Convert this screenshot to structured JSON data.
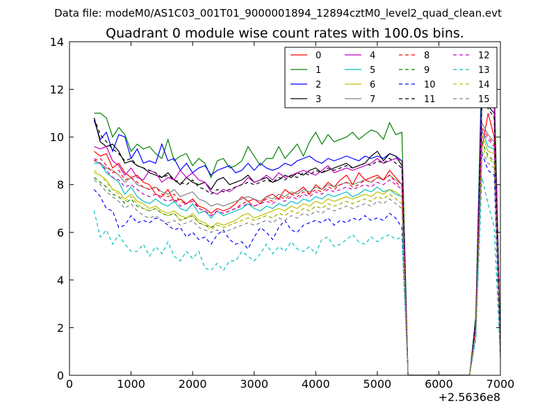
{
  "chart_data": {
    "type": "line",
    "suptitle": "Data file: modeM0/AS1C03_001T01_9000001894_12894cztM0_level2_quad_clean.evt",
    "title": "Quadrant 0 module wise count rates with 100.0s bins.",
    "xlabel": "",
    "ylabel": "",
    "x_offset_label": "+2.5636e8",
    "xlim": [
      0,
      7000
    ],
    "ylim": [
      0,
      14
    ],
    "x_ticks": [
      0,
      1000,
      2000,
      3000,
      4000,
      5000,
      6000,
      7000
    ],
    "y_ticks": [
      0,
      2,
      4,
      6,
      8,
      10,
      12,
      14
    ],
    "legend": {
      "location": "top-right",
      "columns": 4
    },
    "x": [
      400,
      500,
      600,
      700,
      800,
      900,
      1000,
      1100,
      1200,
      1300,
      1400,
      1500,
      1600,
      1700,
      1800,
      1900,
      2000,
      2100,
      2200,
      2300,
      2400,
      2500,
      2600,
      2700,
      2800,
      2900,
      3000,
      3100,
      3200,
      3300,
      3400,
      3500,
      3600,
      3700,
      3800,
      3900,
      4000,
      4100,
      4200,
      4300,
      4400,
      4500,
      4600,
      4700,
      4800,
      4900,
      5000,
      5100,
      5200,
      5300,
      5400,
      5500,
      5600,
      5700,
      5800,
      5900,
      6000,
      6100,
      6200,
      6300,
      6400,
      6500,
      6600,
      6700,
      6800,
      6900,
      7000
    ],
    "series": [
      {
        "name": "0",
        "color": "#ff0000",
        "dash": "solid",
        "values": [
          9.4,
          9.2,
          9.3,
          8.7,
          8.9,
          8.5,
          8.3,
          8.4,
          8.1,
          8.0,
          7.6,
          7.5,
          7.8,
          7.3,
          7.4,
          7.2,
          7.4,
          7.1,
          7.0,
          6.8,
          7.0,
          6.9,
          7.0,
          7.2,
          7.5,
          7.3,
          7.4,
          7.2,
          7.5,
          7.6,
          7.4,
          7.8,
          7.6,
          7.7,
          7.9,
          7.6,
          8.0,
          7.8,
          8.1,
          7.9,
          8.2,
          8.4,
          8.0,
          8.5,
          8.2,
          8.3,
          8.4,
          8.2,
          8.6,
          8.3,
          8.0,
          0.0,
          0.0,
          0.0,
          0.0,
          0.0,
          0.0,
          0.0,
          0.0,
          0.0,
          0.0,
          0.0,
          2.0,
          9.5,
          11.0,
          10.0,
          1.2
        ]
      },
      {
        "name": "1",
        "color": "#008000",
        "dash": "solid",
        "values": [
          11.0,
          11.0,
          10.8,
          10.0,
          10.4,
          10.1,
          9.4,
          9.7,
          9.5,
          9.6,
          9.3,
          9.1,
          9.9,
          9.0,
          9.2,
          9.3,
          8.8,
          9.1,
          8.9,
          8.3,
          9.0,
          9.1,
          8.7,
          8.8,
          9.0,
          9.6,
          9.2,
          8.8,
          9.1,
          9.1,
          9.6,
          9.1,
          9.4,
          9.7,
          9.2,
          9.8,
          10.2,
          9.7,
          10.1,
          9.8,
          9.9,
          10.0,
          10.2,
          9.9,
          10.1,
          10.3,
          10.2,
          9.9,
          10.6,
          10.1,
          10.2,
          0.0,
          0.0,
          0.0,
          0.0,
          0.0,
          0.0,
          0.0,
          0.0,
          0.0,
          0.0,
          0.0,
          2.5,
          13.4,
          12.6,
          12.4,
          1.5
        ]
      },
      {
        "name": "2",
        "color": "#0000ff",
        "dash": "solid",
        "values": [
          10.7,
          9.9,
          10.2,
          9.4,
          10.1,
          10.0,
          9.1,
          9.5,
          8.9,
          9.0,
          8.9,
          9.7,
          9.0,
          9.1,
          8.6,
          8.9,
          8.5,
          8.7,
          8.8,
          8.4,
          8.6,
          8.7,
          8.8,
          8.5,
          8.6,
          8.9,
          8.6,
          8.9,
          8.7,
          8.6,
          8.7,
          8.9,
          8.8,
          9.0,
          9.1,
          9.2,
          9.0,
          8.9,
          9.1,
          9.0,
          9.1,
          9.2,
          9.1,
          9.0,
          9.2,
          9.1,
          9.2,
          9.1,
          9.3,
          9.2,
          9.0,
          0.0,
          0.0,
          0.0,
          0.0,
          0.0,
          0.0,
          0.0,
          0.0,
          0.0,
          0.0,
          0.0,
          2.3,
          12.5,
          12.0,
          11.3,
          1.0
        ]
      },
      {
        "name": "3",
        "color": "#000000",
        "dash": "solid",
        "values": [
          10.8,
          9.8,
          9.6,
          9.7,
          9.4,
          8.9,
          9.0,
          8.8,
          8.7,
          8.5,
          8.4,
          8.3,
          8.5,
          8.2,
          8.0,
          8.3,
          8.1,
          8.0,
          8.1,
          7.8,
          8.2,
          8.3,
          8.0,
          8.1,
          8.2,
          8.4,
          8.1,
          8.2,
          8.3,
          8.1,
          8.2,
          8.4,
          8.3,
          8.5,
          8.4,
          8.6,
          8.7,
          8.5,
          8.6,
          8.7,
          8.8,
          8.9,
          8.7,
          8.8,
          8.9,
          9.2,
          9.4,
          9.0,
          9.3,
          9.2,
          8.8,
          0.0,
          0.0,
          0.0,
          0.0,
          0.0,
          0.0,
          0.0,
          0.0,
          0.0,
          0.0,
          0.0,
          2.1,
          11.5,
          11.3,
          11.0,
          1.1
        ]
      },
      {
        "name": "4",
        "color": "#bf00bf",
        "dash": "solid",
        "values": [
          9.6,
          9.5,
          9.6,
          9.0,
          8.8,
          8.4,
          8.7,
          8.3,
          8.2,
          8.6,
          8.5,
          8.1,
          8.3,
          8.2,
          8.6,
          8.3,
          8.5,
          8.2,
          8.1,
          7.7,
          7.6,
          7.8,
          7.7,
          7.9,
          8.0,
          8.3,
          8.1,
          8.2,
          8.4,
          8.2,
          8.5,
          8.3,
          8.4,
          8.5,
          8.6,
          8.5,
          8.4,
          8.6,
          8.8,
          8.5,
          8.6,
          8.7,
          8.6,
          8.7,
          8.8,
          8.9,
          9.1,
          8.9,
          9.0,
          9.1,
          9.0,
          0.0,
          0.0,
          0.0,
          0.0,
          0.0,
          0.0,
          0.0,
          0.0,
          0.0,
          0.0,
          0.0,
          2.2,
          11.8,
          12.1,
          11.5,
          1.0
        ]
      },
      {
        "name": "5",
        "color": "#00bfbf",
        "dash": "solid",
        "values": [
          8.9,
          8.9,
          8.5,
          8.3,
          8.1,
          7.6,
          7.9,
          7.5,
          7.3,
          7.2,
          7.4,
          7.2,
          7.1,
          7.3,
          7.0,
          6.9,
          7.2,
          6.8,
          6.9,
          6.6,
          6.9,
          6.7,
          6.8,
          6.9,
          7.0,
          7.2,
          7.0,
          6.9,
          7.1,
          7.0,
          7.2,
          7.1,
          7.3,
          7.2,
          7.4,
          7.3,
          7.5,
          7.4,
          7.6,
          7.5,
          7.6,
          7.7,
          7.5,
          7.6,
          7.8,
          7.7,
          7.9,
          7.7,
          7.8,
          7.6,
          7.5,
          0.0,
          0.0,
          0.0,
          0.0,
          0.0,
          0.0,
          0.0,
          0.0,
          0.0,
          0.0,
          0.0,
          2.0,
          10.3,
          9.6,
          9.5,
          1.0
        ]
      },
      {
        "name": "6",
        "color": "#bfbf00",
        "dash": "solid",
        "values": [
          8.5,
          8.4,
          8.2,
          7.8,
          7.7,
          7.4,
          7.6,
          7.3,
          7.2,
          7.0,
          7.1,
          6.9,
          6.8,
          6.9,
          6.7,
          6.6,
          6.8,
          6.5,
          6.4,
          6.2,
          6.4,
          6.3,
          6.4,
          6.5,
          6.7,
          6.8,
          6.6,
          6.7,
          6.8,
          6.9,
          7.0,
          6.9,
          7.1,
          7.0,
          7.2,
          7.1,
          7.3,
          7.2,
          7.4,
          7.3,
          7.4,
          7.5,
          7.4,
          7.5,
          7.6,
          7.5,
          7.7,
          7.6,
          7.8,
          7.7,
          7.5,
          0.0,
          0.0,
          0.0,
          0.0,
          0.0,
          0.0,
          0.0,
          0.0,
          0.0,
          0.0,
          0.0,
          1.9,
          10.1,
          9.4,
          9.3,
          0.9
        ]
      },
      {
        "name": "7",
        "color": "#808080",
        "dash": "solid",
        "values": [
          9.0,
          8.9,
          8.7,
          8.6,
          8.4,
          8.1,
          8.3,
          8.0,
          7.9,
          7.8,
          7.9,
          7.7,
          7.6,
          7.8,
          7.5,
          7.6,
          7.7,
          7.4,
          7.3,
          7.1,
          7.2,
          7.1,
          7.2,
          7.3,
          7.4,
          7.5,
          7.4,
          7.3,
          7.5,
          7.4,
          7.6,
          7.5,
          7.7,
          7.6,
          7.8,
          7.7,
          7.9,
          7.8,
          8.0,
          7.9,
          8.0,
          8.1,
          8.0,
          8.1,
          8.2,
          8.1,
          8.3,
          8.2,
          8.4,
          8.2,
          8.0,
          0.0,
          0.0,
          0.0,
          0.0,
          0.0,
          0.0,
          0.0,
          0.0,
          0.0,
          0.0,
          0.0,
          2.0,
          10.6,
          10.1,
          9.8,
          1.0
        ]
      },
      {
        "name": "8",
        "color": "#ff0000",
        "dash": "dashed",
        "values": [
          9.0,
          9.1,
          8.8,
          8.5,
          8.6,
          8.2,
          8.3,
          8.1,
          7.9,
          7.8,
          7.9,
          7.6,
          7.5,
          7.6,
          7.3,
          7.2,
          7.4,
          7.0,
          6.9,
          6.7,
          6.9,
          6.8,
          6.9,
          7.0,
          7.2,
          7.3,
          7.1,
          7.2,
          7.4,
          7.3,
          7.5,
          7.4,
          7.6,
          7.5,
          7.7,
          7.6,
          7.8,
          7.7,
          7.9,
          7.8,
          8.0,
          8.1,
          7.9,
          8.0,
          8.2,
          8.1,
          8.3,
          8.2,
          8.4,
          8.1,
          7.9,
          0.0,
          0.0,
          0.0,
          0.0,
          0.0,
          0.0,
          0.0,
          0.0,
          0.0,
          0.0,
          0.0,
          2.0,
          10.4,
          10.0,
          9.7,
          1.0
        ]
      },
      {
        "name": "9",
        "color": "#008000",
        "dash": "dashed",
        "values": [
          8.3,
          8.1,
          7.9,
          7.6,
          7.5,
          7.2,
          7.4,
          7.1,
          7.0,
          6.9,
          7.0,
          6.8,
          6.7,
          6.8,
          6.5,
          6.6,
          6.7,
          6.4,
          6.3,
          6.2,
          6.3,
          6.2,
          6.3,
          6.4,
          6.5,
          6.6,
          6.5,
          6.6,
          6.7,
          6.6,
          6.8,
          6.7,
          6.9,
          6.8,
          7.0,
          6.9,
          7.1,
          7.0,
          7.2,
          7.1,
          7.2,
          7.3,
          7.2,
          7.3,
          7.4,
          7.3,
          7.5,
          7.4,
          7.6,
          7.4,
          7.2,
          0.0,
          0.0,
          0.0,
          0.0,
          0.0,
          0.0,
          0.0,
          0.0,
          0.0,
          0.0,
          0.0,
          1.8,
          9.8,
          9.2,
          9.0,
          0.9
        ]
      },
      {
        "name": "10",
        "color": "#0000ff",
        "dash": "dashed",
        "values": [
          7.8,
          7.5,
          7.0,
          6.9,
          6.2,
          6.3,
          6.7,
          6.4,
          6.5,
          6.4,
          6.6,
          6.5,
          6.3,
          6.1,
          6.2,
          5.8,
          6.0,
          5.7,
          5.8,
          5.5,
          5.9,
          6.1,
          5.7,
          5.5,
          5.6,
          5.3,
          5.8,
          6.2,
          6.0,
          5.7,
          6.2,
          6.5,
          6.1,
          6.0,
          6.3,
          6.4,
          6.5,
          6.4,
          6.6,
          6.3,
          6.5,
          6.4,
          6.6,
          6.5,
          6.7,
          6.5,
          6.6,
          6.5,
          6.8,
          6.6,
          6.2,
          0.0,
          0.0,
          0.0,
          0.0,
          0.0,
          0.0,
          0.0,
          0.0,
          0.0,
          0.0,
          0.0,
          1.7,
          9.3,
          8.6,
          8.4,
          0.8
        ]
      },
      {
        "name": "11",
        "color": "#000000",
        "dash": "dashed",
        "values": [
          10.8,
          10.1,
          9.8,
          9.5,
          9.3,
          9.0,
          9.1,
          8.8,
          8.7,
          8.6,
          8.5,
          8.3,
          8.4,
          8.2,
          8.1,
          8.0,
          8.2,
          7.9,
          7.8,
          7.6,
          7.8,
          7.7,
          7.8,
          7.9,
          8.0,
          8.1,
          8.0,
          8.1,
          8.2,
          8.1,
          8.3,
          8.2,
          8.4,
          8.3,
          8.5,
          8.4,
          8.6,
          8.5,
          8.7,
          8.6,
          8.7,
          8.8,
          8.7,
          8.8,
          8.9,
          8.8,
          9.0,
          8.9,
          9.1,
          8.9,
          8.7,
          0.0,
          0.0,
          0.0,
          0.0,
          0.0,
          0.0,
          0.0,
          0.0,
          0.0,
          0.0,
          0.0,
          2.2,
          11.4,
          11.2,
          10.8,
          1.1
        ]
      },
      {
        "name": "12",
        "color": "#bf00bf",
        "dash": "dashed",
        "values": [
          9.1,
          8.9,
          8.6,
          8.3,
          8.2,
          7.9,
          8.0,
          7.8,
          7.6,
          7.5,
          7.6,
          7.4,
          7.3,
          7.4,
          7.1,
          7.2,
          7.3,
          7.0,
          6.9,
          6.7,
          6.9,
          6.8,
          6.9,
          7.0,
          7.1,
          7.2,
          7.1,
          7.2,
          7.3,
          7.2,
          7.4,
          7.3,
          7.5,
          7.4,
          7.6,
          7.5,
          7.7,
          7.6,
          7.8,
          7.7,
          7.8,
          7.9,
          7.8,
          7.9,
          8.0,
          7.9,
          8.1,
          8.0,
          8.2,
          8.0,
          7.8,
          0.0,
          0.0,
          0.0,
          0.0,
          0.0,
          0.0,
          0.0,
          0.0,
          0.0,
          0.0,
          0.0,
          2.0,
          10.2,
          9.9,
          9.6,
          1.0
        ]
      },
      {
        "name": "13",
        "color": "#00bfbf",
        "dash": "dashed",
        "values": [
          6.9,
          5.8,
          6.1,
          5.5,
          5.9,
          5.5,
          5.2,
          5.2,
          5.5,
          5.0,
          5.4,
          5.1,
          5.6,
          5.0,
          4.8,
          5.2,
          4.9,
          5.2,
          4.5,
          4.4,
          4.7,
          4.4,
          4.8,
          4.8,
          5.2,
          5.0,
          4.8,
          5.1,
          5.5,
          5.1,
          5.4,
          5.2,
          5.6,
          5.3,
          5.2,
          5.4,
          5.1,
          5.7,
          5.8,
          5.4,
          5.5,
          5.7,
          5.9,
          5.6,
          5.5,
          5.8,
          5.6,
          5.8,
          5.9,
          5.7,
          5.8,
          0.0,
          0.0,
          0.0,
          0.0,
          0.0,
          0.0,
          0.0,
          0.0,
          0.0,
          0.0,
          0.0,
          1.5,
          8.3,
          7.2,
          6.2,
          0.7
        ]
      },
      {
        "name": "14",
        "color": "#bfbf00",
        "dash": "dashed",
        "values": [
          8.6,
          8.4,
          8.1,
          7.8,
          7.6,
          7.3,
          7.5,
          7.2,
          7.0,
          6.9,
          7.0,
          6.8,
          6.7,
          6.8,
          6.5,
          6.6,
          6.7,
          6.4,
          6.3,
          6.1,
          6.3,
          6.2,
          6.3,
          6.4,
          6.5,
          6.6,
          6.5,
          6.6,
          6.7,
          6.6,
          6.8,
          6.7,
          6.9,
          6.8,
          7.0,
          6.9,
          7.1,
          7.0,
          7.2,
          7.1,
          7.2,
          7.3,
          7.2,
          7.3,
          7.4,
          7.3,
          7.5,
          7.4,
          7.6,
          7.4,
          7.2,
          0.0,
          0.0,
          0.0,
          0.0,
          0.0,
          0.0,
          0.0,
          0.0,
          0.0,
          0.0,
          0.0,
          1.8,
          9.6,
          9.1,
          8.9,
          0.9
        ]
      },
      {
        "name": "15",
        "color": "#808080",
        "dash": "dashed",
        "values": [
          8.2,
          8.0,
          7.7,
          7.5,
          7.3,
          7.0,
          7.2,
          6.9,
          6.7,
          6.6,
          6.7,
          6.5,
          6.4,
          6.5,
          6.3,
          6.4,
          6.5,
          6.2,
          6.1,
          6.0,
          6.1,
          6.0,
          6.1,
          6.2,
          6.3,
          6.4,
          6.3,
          6.4,
          6.5,
          6.4,
          6.6,
          6.5,
          6.7,
          6.6,
          6.8,
          6.7,
          6.9,
          6.8,
          7.0,
          6.9,
          7.0,
          7.1,
          7.0,
          7.1,
          7.2,
          7.1,
          7.3,
          7.2,
          7.4,
          7.2,
          7.0,
          0.0,
          0.0,
          0.0,
          0.0,
          0.0,
          0.0,
          0.0,
          0.0,
          0.0,
          0.0,
          0.0,
          1.8,
          9.4,
          8.9,
          8.7,
          0.9
        ]
      }
    ]
  }
}
